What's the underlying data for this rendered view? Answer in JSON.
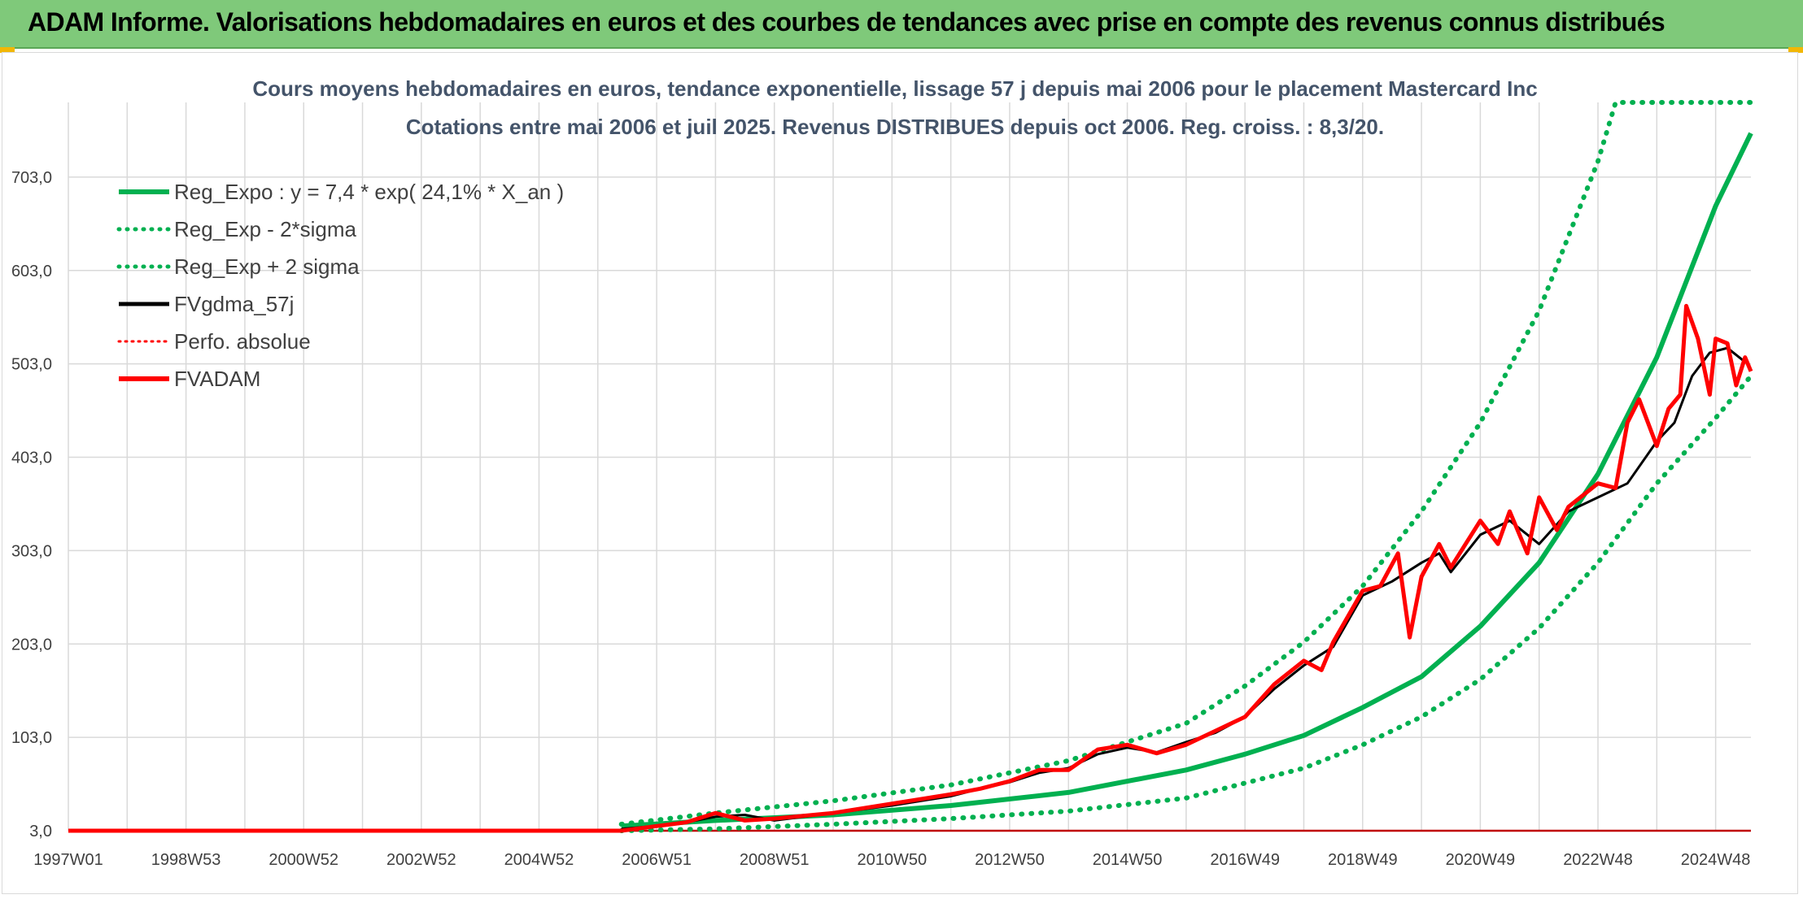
{
  "header": {
    "title": "ADAM Informe. Valorisations hebdomadaires en euros et des courbes de tendances avec prise en compte des revenus connus distribués"
  },
  "colors": {
    "banner": "#7fc97a",
    "reg_green": "#00b050",
    "fvgdma_black": "#000000",
    "fvadam_red": "#ff0000",
    "grid": "#d9d9d9"
  },
  "chart_data": {
    "type": "line",
    "title_line1": "Cours moyens hebdomadaires en euros, tendance exponentielle, lissage 57 j depuis mai 2006 pour le placement Mastercard Inc",
    "title_line2": "Cotations entre mai 2006 et juil 2025. Revenus DISTRIBUES depuis oct 2006. Reg. croiss. : 8,3/20.",
    "x_ticks": [
      "1997W01",
      "1998W53",
      "2000W52",
      "2002W52",
      "2004W52",
      "2006W51",
      "2008W51",
      "2010W50",
      "2012W50",
      "2014W50",
      "2016W49",
      "2018W49",
      "2020W49",
      "2022W48",
      "2024W48"
    ],
    "x_tick_years": [
      1997.0,
      1999.0,
      2001.0,
      2003.0,
      2005.0,
      2007.0,
      2009.0,
      2011.0,
      2013.0,
      2015.0,
      2017.0,
      2019.0,
      2021.0,
      2023.0,
      2025.0
    ],
    "xlim": [
      1997.0,
      2025.6
    ],
    "y_ticks": [
      "3,0",
      "103,0",
      "203,0",
      "303,0",
      "403,0",
      "503,0",
      "603,0",
      "703,0"
    ],
    "y_tick_values": [
      3,
      103,
      203,
      303,
      403,
      503,
      603,
      703
    ],
    "ylim": [
      3,
      783
    ],
    "grid": true,
    "legend_position": "top-left",
    "legend": [
      {
        "label": "Reg_Expo : y = 7,4 * exp( 24,1% *  X_an )",
        "style": "solid-thick",
        "color": "#00b050"
      },
      {
        "label": "Reg_Exp - 2*sigma",
        "style": "dotted",
        "color": "#00b050"
      },
      {
        "label": "Reg_Exp + 2 sigma",
        "style": "dotted",
        "color": "#00b050"
      },
      {
        "label": "FVgdma_57j",
        "style": "solid",
        "color": "#000000"
      },
      {
        "label": "Perfo. absolue",
        "style": "dotted",
        "color": "#ff0000"
      },
      {
        "label": "FVADAM",
        "style": "solid-thick",
        "color": "#ff0000"
      }
    ],
    "series": [
      {
        "name": "Reg_Expo : y = 7,4 * exp( 24,1% *  X_an )",
        "x": [
          2006.4,
          2008.0,
          2010.0,
          2012.0,
          2014.0,
          2016.0,
          2017.0,
          2018.0,
          2019.0,
          2020.0,
          2021.0,
          2022.0,
          2023.0,
          2024.0,
          2025.0,
          2025.6
        ],
        "y": [
          8,
          14,
          20,
          30,
          44,
          68,
          85,
          105,
          135,
          168,
          222,
          290,
          385,
          510,
          672,
          750
        ]
      },
      {
        "name": "Reg_Exp - 2*sigma",
        "x": [
          2006.4,
          2008.0,
          2010.0,
          2012.0,
          2014.0,
          2016.0,
          2018.0,
          2019.0,
          2020.0,
          2021.0,
          2022.0,
          2023.0,
          2024.0,
          2025.0,
          2025.6
        ],
        "y": [
          3,
          5,
          10,
          16,
          24,
          38,
          70,
          95,
          125,
          165,
          220,
          290,
          375,
          445,
          490
        ]
      },
      {
        "name": "Reg_Exp + 2 sigma",
        "x": [
          2006.4,
          2008.0,
          2010.0,
          2012.0,
          2014.0,
          2016.0,
          2017.0,
          2018.0,
          2019.0,
          2020.0,
          2021.0,
          2022.0,
          2023.0,
          2023.3,
          2024.0,
          2025.0,
          2025.6
        ],
        "y": [
          10,
          22,
          35,
          52,
          78,
          118,
          158,
          205,
          265,
          345,
          440,
          560,
          720,
          783,
          783,
          783,
          783
        ]
      },
      {
        "name": "FVgdma_57j",
        "x": [
          2006.4,
          2007.0,
          2007.5,
          2008.0,
          2008.5,
          2009.0,
          2010.0,
          2011.0,
          2012.0,
          2012.5,
          2013.0,
          2013.5,
          2014.0,
          2014.5,
          2015.0,
          2015.5,
          2016.0,
          2016.5,
          2017.0,
          2017.5,
          2018.0,
          2018.5,
          2019.0,
          2019.5,
          2020.0,
          2020.3,
          2020.5,
          2021.0,
          2021.5,
          2022.0,
          2022.5,
          2023.0,
          2023.5,
          2024.0,
          2024.3,
          2024.6,
          2024.9,
          2025.2,
          2025.5
        ],
        "y": [
          5,
          8,
          12,
          18,
          20,
          14,
          22,
          30,
          40,
          48,
          55,
          65,
          70,
          85,
          92,
          87,
          98,
          108,
          125,
          155,
          180,
          200,
          255,
          270,
          290,
          300,
          280,
          320,
          335,
          310,
          345,
          360,
          375,
          420,
          440,
          490,
          515,
          520,
          505
        ]
      },
      {
        "name": "Perfo. absolue",
        "x": [
          1997.0,
          2006.4,
          2025.6
        ],
        "y": [
          3,
          3,
          3
        ]
      },
      {
        "name": "FVADAM",
        "x": [
          1997.0,
          2006.4,
          2007.0,
          2007.5,
          2008.0,
          2008.5,
          2009.0,
          2010.0,
          2011.0,
          2012.0,
          2012.5,
          2013.0,
          2013.5,
          2014.0,
          2014.5,
          2015.0,
          2015.5,
          2016.0,
          2016.5,
          2017.0,
          2017.5,
          2018.0,
          2018.3,
          2018.5,
          2019.0,
          2019.3,
          2019.6,
          2019.8,
          2020.0,
          2020.3,
          2020.5,
          2021.0,
          2021.3,
          2021.5,
          2021.8,
          2022.0,
          2022.3,
          2022.5,
          2023.0,
          2023.3,
          2023.5,
          2023.7,
          2024.0,
          2024.2,
          2024.4,
          2024.5,
          2024.7,
          2024.9,
          2025.0,
          2025.2,
          2025.35,
          2025.5,
          2025.6
        ],
        "y": [
          3,
          3,
          8,
          12,
          22,
          14,
          16,
          22,
          32,
          42,
          48,
          56,
          68,
          68,
          90,
          95,
          86,
          95,
          110,
          125,
          160,
          185,
          175,
          205,
          260,
          265,
          300,
          210,
          275,
          310,
          285,
          335,
          310,
          345,
          300,
          360,
          325,
          350,
          375,
          370,
          440,
          465,
          415,
          455,
          470,
          565,
          530,
          470,
          530,
          525,
          480,
          510,
          495
        ]
      }
    ]
  }
}
